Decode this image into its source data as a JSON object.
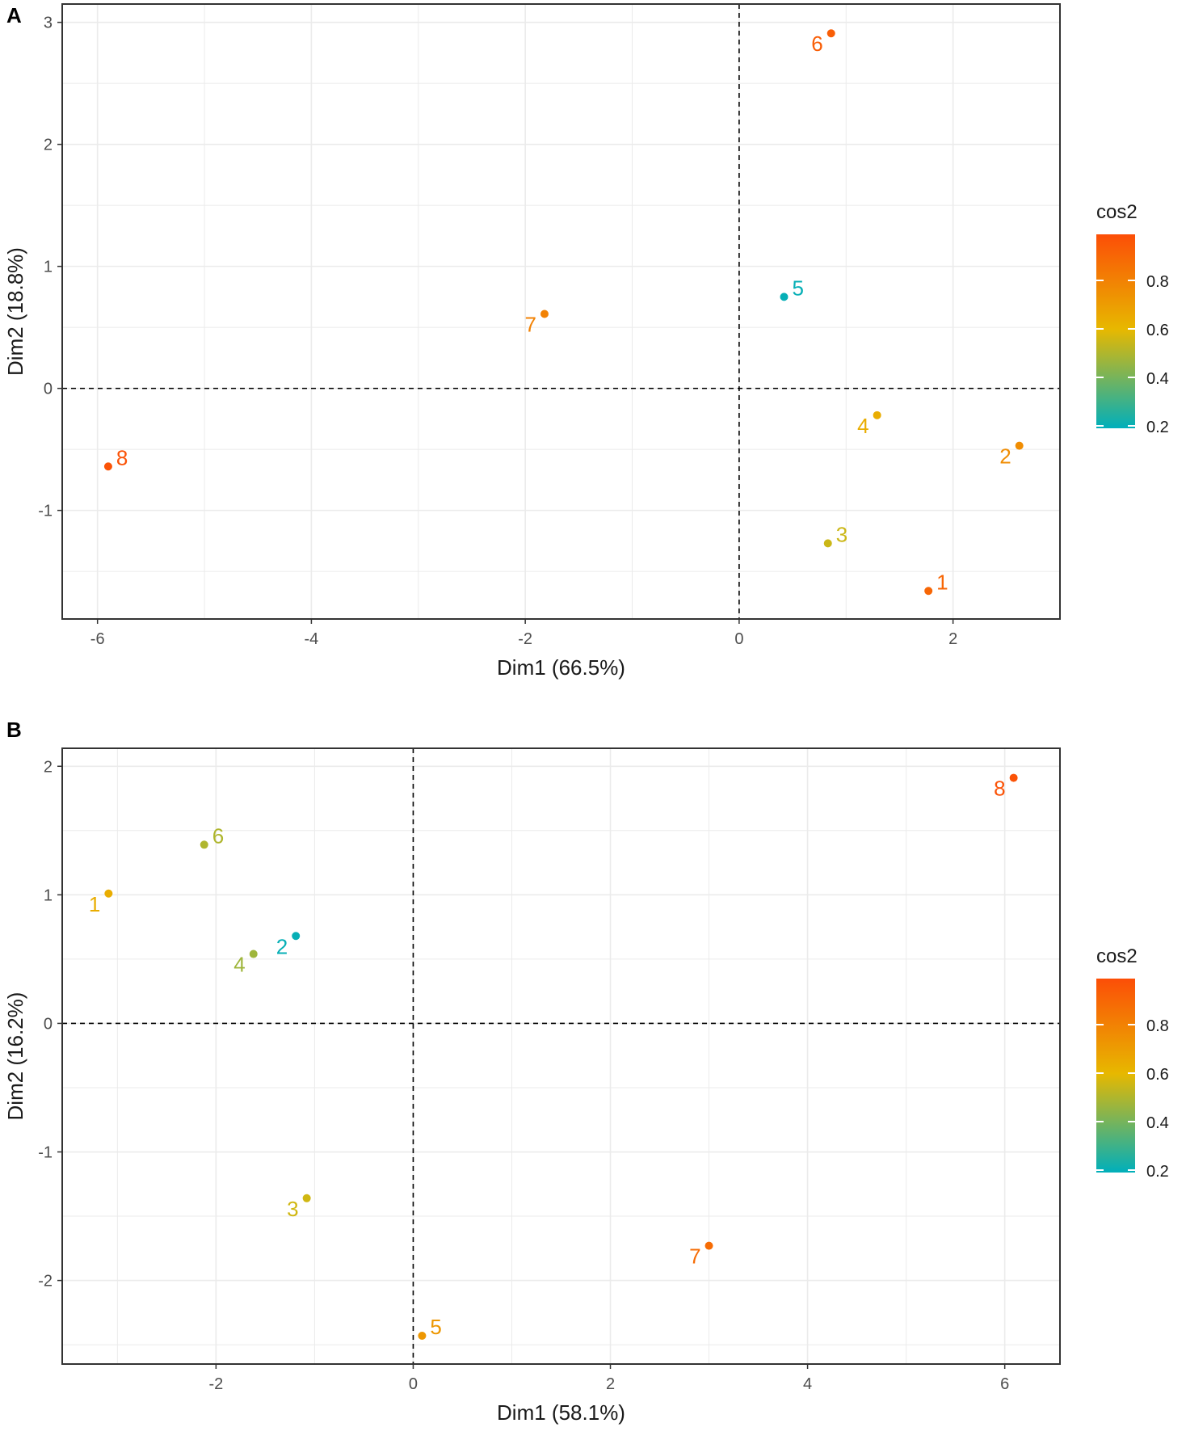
{
  "chart_data": [
    {
      "type": "scatter",
      "panel_label": "A",
      "title": "",
      "xlabel": "Dim1 (66.5%)",
      "ylabel": "Dim2 (18.8%)",
      "xlim": [
        -6.33,
        3.0
      ],
      "ylim": [
        -1.89,
        3.15
      ],
      "xticks": [
        -6,
        -4,
        -2,
        0,
        2
      ],
      "yticks": [
        -1,
        0,
        1,
        2,
        3
      ],
      "grid": true,
      "reference_lines": {
        "x": 0,
        "y": 0,
        "style": "dashed"
      },
      "legend": {
        "title": "cos2",
        "placement": "right",
        "ticks": [
          0.2,
          0.4,
          0.6,
          0.8
        ],
        "range": [
          0.19,
          0.99
        ]
      },
      "points": [
        {
          "label": "1",
          "x": 1.77,
          "y": -1.66,
          "cos2": 0.9,
          "label_pos": "upper-right"
        },
        {
          "label": "2",
          "x": 2.62,
          "y": -0.47,
          "cos2": 0.76,
          "label_pos": "lower-left"
        },
        {
          "label": "3",
          "x": 0.83,
          "y": -1.27,
          "cos2": 0.55,
          "label_pos": "upper-right"
        },
        {
          "label": "4",
          "x": 1.29,
          "y": -0.22,
          "cos2": 0.64,
          "label_pos": "lower-left"
        },
        {
          "label": "5",
          "x": 0.42,
          "y": 0.75,
          "cos2": 0.2,
          "label_pos": "upper-right"
        },
        {
          "label": "6",
          "x": 0.86,
          "y": 2.91,
          "cos2": 0.93,
          "label_pos": "lower-left"
        },
        {
          "label": "7",
          "x": -1.82,
          "y": 0.61,
          "cos2": 0.8,
          "label_pos": "lower-left"
        },
        {
          "label": "8",
          "x": -5.9,
          "y": -0.64,
          "cos2": 0.97,
          "label_pos": "upper-right"
        }
      ]
    },
    {
      "type": "scatter",
      "panel_label": "B",
      "title": "",
      "xlabel": "Dim1 (58.1%)",
      "ylabel": "Dim2 (16.2%)",
      "xlim": [
        -3.56,
        6.56
      ],
      "ylim": [
        -2.65,
        2.14
      ],
      "xticks": [
        -2,
        0,
        2,
        4,
        6
      ],
      "yticks": [
        -2,
        -1,
        0,
        1,
        2
      ],
      "grid": true,
      "reference_lines": {
        "x": 0,
        "y": 0,
        "style": "dashed"
      },
      "legend": {
        "title": "cos2",
        "placement": "right",
        "ticks": [
          0.2,
          0.4,
          0.6,
          0.8
        ],
        "range": [
          0.19,
          0.99
        ]
      },
      "points": [
        {
          "label": "1",
          "x": -3.09,
          "y": 1.01,
          "cos2": 0.64,
          "label_pos": "lower-left"
        },
        {
          "label": "2",
          "x": -1.19,
          "y": 0.68,
          "cos2": 0.2,
          "label_pos": "lower-left"
        },
        {
          "label": "3",
          "x": -1.08,
          "y": -1.36,
          "cos2": 0.56,
          "label_pos": "lower-left"
        },
        {
          "label": "4",
          "x": -1.62,
          "y": 0.54,
          "cos2": 0.47,
          "label_pos": "lower-left"
        },
        {
          "label": "5",
          "x": 0.09,
          "y": -2.43,
          "cos2": 0.72,
          "label_pos": "upper-right"
        },
        {
          "label": "6",
          "x": -2.12,
          "y": 1.39,
          "cos2": 0.5,
          "label_pos": "upper-right"
        },
        {
          "label": "7",
          "x": 3.0,
          "y": -1.73,
          "cos2": 0.88,
          "label_pos": "lower-left"
        },
        {
          "label": "8",
          "x": 6.09,
          "y": 1.91,
          "cos2": 0.97,
          "label_pos": "lower-left"
        }
      ]
    }
  ],
  "colors": {
    "low": "#00AFBB",
    "mid": "#E7B800",
    "high": "#FC4E07",
    "mid_value": 0.6
  }
}
